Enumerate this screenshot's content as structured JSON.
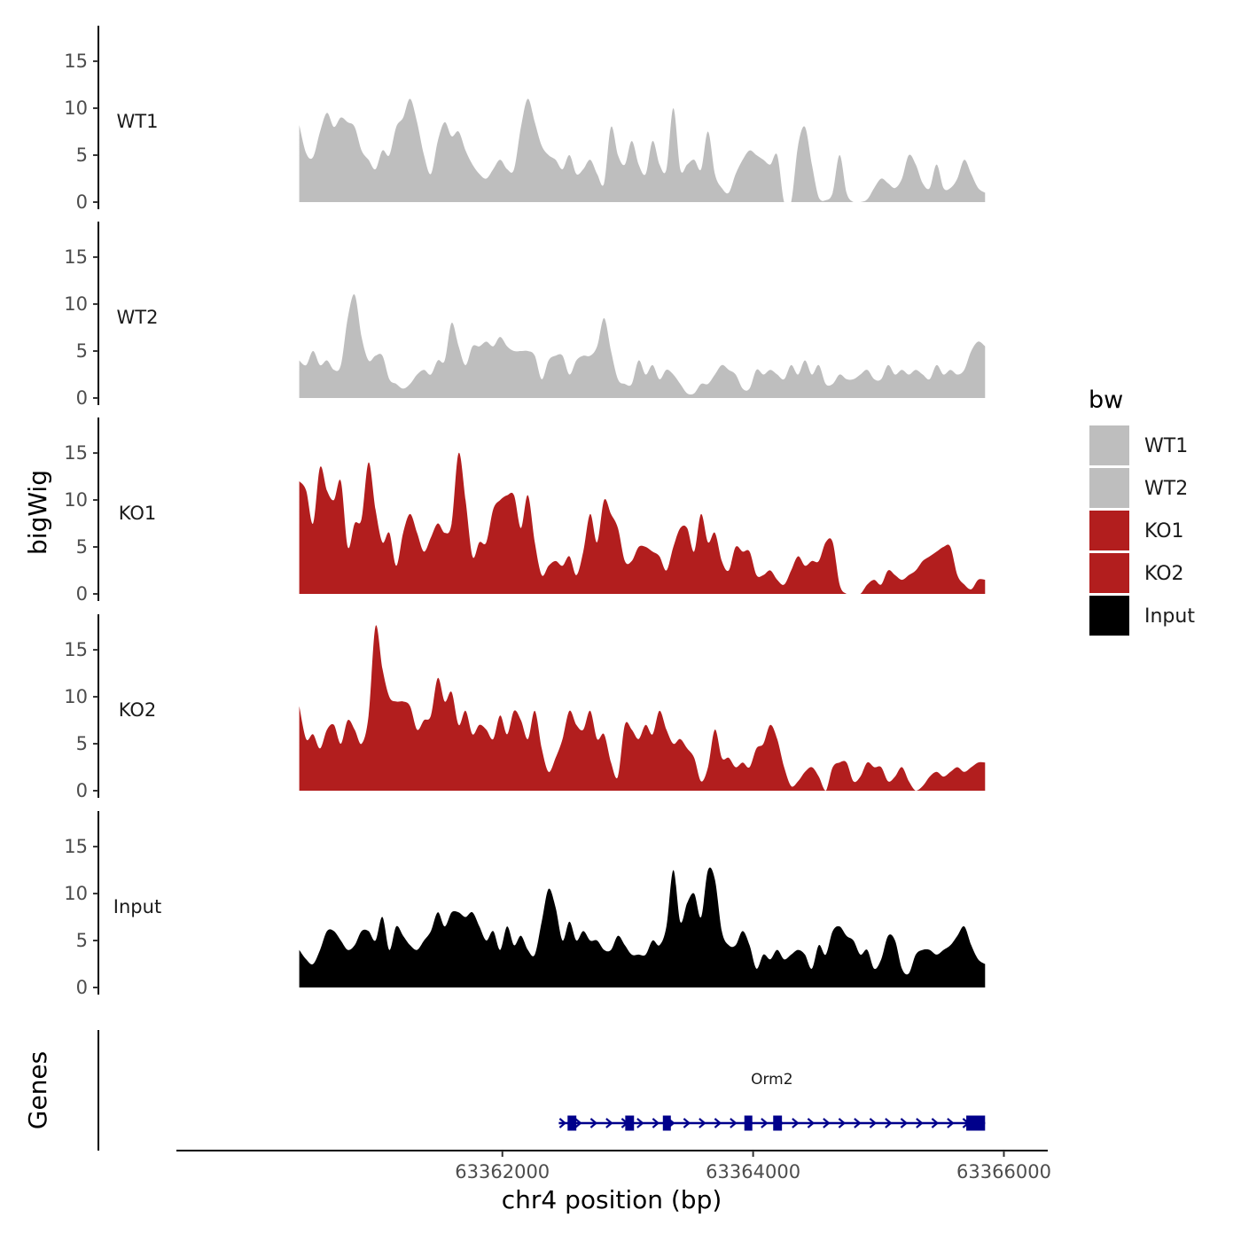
{
  "chart_data": {
    "type": "area",
    "region": {
      "chrom": "chr4",
      "start": 63360380,
      "end": 63365850
    },
    "xlabel": "chr4 position (bp)",
    "ylabel": "bigWig",
    "genes_label": "Genes",
    "xlim": [
      63359400,
      63366350
    ],
    "x_ticks": [
      63362000,
      63364000,
      63366000
    ],
    "x_tick_labels": [
      "63362000",
      "63364000",
      "63366000"
    ],
    "ylim": [
      0,
      18.5
    ],
    "y_ticks": [
      0,
      5,
      10,
      15
    ],
    "y_tick_labels": [
      "0",
      "5",
      "10",
      "15"
    ],
    "legend": {
      "title": "bw",
      "entries": [
        {
          "label": "WT1",
          "color": "#bebebe"
        },
        {
          "label": "WT2",
          "color": "#bebebe"
        },
        {
          "label": "KO1",
          "color": "#b21e1e"
        },
        {
          "label": "KO2",
          "color": "#b21e1e"
        },
        {
          "label": "Input",
          "color": "#000000"
        }
      ]
    },
    "series": [
      {
        "name": "WT1",
        "color": "#bebebe",
        "values": [
          8.2,
          5.2,
          4.8,
          7.5,
          9.5,
          8.0,
          9.0,
          8.5,
          8.0,
          5.5,
          4.5,
          3.5,
          5.5,
          5.0,
          8.0,
          9.0,
          11.0,
          8.5,
          5.0,
          3.0,
          6.5,
          8.5,
          7.0,
          7.5,
          5.5,
          4.0,
          3.0,
          2.5,
          3.5,
          4.5,
          3.5,
          3.5,
          8.0,
          11.0,
          8.5,
          6.0,
          5.0,
          4.5,
          3.5,
          5.0,
          3.0,
          3.5,
          4.5,
          3.0,
          2.0,
          8.0,
          5.0,
          4.0,
          6.5,
          4.0,
          3.0,
          6.5,
          4.0,
          3.5,
          10.0,
          3.5,
          4.0,
          4.5,
          3.5,
          7.5,
          3.0,
          1.5,
          1.0,
          3.0,
          4.5,
          5.5,
          5.0,
          4.5,
          4.0,
          5.0,
          4.5,
          4.5,
          6.0,
          8.0,
          4.0,
          0.5,
          0.2,
          1.0,
          5.0,
          1.0,
          0.5,
          0.0,
          0.3,
          1.5,
          2.5,
          2.0,
          1.5,
          2.5,
          5.0,
          4.0,
          2.0,
          1.5,
          4.0,
          1.5,
          1.5,
          2.5,
          4.5,
          3.0,
          1.5,
          1.0
        ],
        "zero_gaps": [
          [
            63364220,
            63364320
          ],
          [
            63364780,
            63364850
          ]
        ]
      },
      {
        "name": "WT2",
        "color": "#bebebe",
        "values": [
          4.0,
          3.5,
          5.0,
          3.5,
          4.0,
          3.0,
          3.5,
          8.5,
          11.0,
          6.5,
          4.0,
          4.5,
          4.5,
          2.0,
          1.5,
          1.0,
          1.5,
          2.5,
          3.0,
          2.5,
          4.0,
          4.0,
          8.0,
          5.5,
          3.5,
          5.5,
          5.5,
          6.0,
          5.5,
          6.5,
          5.5,
          5.0,
          5.0,
          5.0,
          4.5,
          2.0,
          4.0,
          4.5,
          4.5,
          2.5,
          4.0,
          4.5,
          4.5,
          5.5,
          8.5,
          5.0,
          2.0,
          1.5,
          1.5,
          4.0,
          2.5,
          3.5,
          2.0,
          3.0,
          2.5,
          1.5,
          0.5,
          0.5,
          1.5,
          1.5,
          2.5,
          3.5,
          3.0,
          2.5,
          1.0,
          1.0,
          3.0,
          2.5,
          3.0,
          2.5,
          2.0,
          3.5,
          2.5,
          4.0,
          2.5,
          3.5,
          1.5,
          1.5,
          2.5,
          2.0,
          2.0,
          2.5,
          3.0,
          2.0,
          2.0,
          3.5,
          2.5,
          3.0,
          2.5,
          3.0,
          2.5,
          2.0,
          3.5,
          2.5,
          3.0,
          2.5,
          3.0,
          5.0,
          6.0,
          5.5
        ],
        "zero_gaps": []
      },
      {
        "name": "KO1",
        "color": "#b21e1e",
        "values": [
          12.0,
          11.0,
          7.5,
          13.5,
          11.0,
          10.0,
          12.0,
          5.0,
          7.5,
          8.0,
          14.0,
          9.0,
          5.5,
          6.5,
          3.0,
          6.5,
          8.5,
          6.5,
          4.5,
          6.0,
          7.5,
          6.5,
          7.5,
          15.0,
          10.0,
          4.0,
          5.5,
          5.5,
          9.0,
          10.0,
          10.5,
          10.5,
          7.0,
          10.5,
          5.5,
          2.0,
          3.0,
          3.5,
          3.0,
          4.0,
          2.0,
          4.5,
          8.5,
          5.5,
          10.0,
          8.5,
          7.0,
          3.5,
          3.5,
          5.0,
          5.0,
          4.5,
          4.0,
          2.5,
          5.0,
          7.0,
          7.0,
          4.5,
          8.5,
          5.5,
          6.5,
          3.5,
          2.5,
          5.0,
          4.5,
          4.5,
          2.0,
          2.0,
          2.5,
          1.5,
          1.0,
          2.5,
          4.0,
          3.0,
          3.5,
          3.5,
          5.5,
          5.5,
          1.0,
          0.0,
          0.5,
          0.5,
          1.0,
          1.5,
          1.0,
          2.5,
          2.0,
          1.5,
          2.0,
          2.5,
          3.5,
          4.0,
          4.5,
          5.0,
          5.0,
          2.0,
          1.0,
          0.5,
          1.5,
          1.5
        ],
        "zero_gaps": [
          [
            63364790,
            63364880
          ]
        ]
      },
      {
        "name": "KO2",
        "color": "#b21e1e",
        "values": [
          9.0,
          5.5,
          6.0,
          4.5,
          6.5,
          7.0,
          5.0,
          7.5,
          6.5,
          5.0,
          8.0,
          17.5,
          13.0,
          10.0,
          9.5,
          9.5,
          9.0,
          6.5,
          7.5,
          8.0,
          12.0,
          9.5,
          10.5,
          7.0,
          8.5,
          6.0,
          7.0,
          6.5,
          5.5,
          8.0,
          6.0,
          8.5,
          7.5,
          5.5,
          8.5,
          4.5,
          2.0,
          3.5,
          5.5,
          8.5,
          7.0,
          6.5,
          8.5,
          5.5,
          6.0,
          3.0,
          1.5,
          7.0,
          6.5,
          5.5,
          7.0,
          6.0,
          8.5,
          6.5,
          5.0,
          5.5,
          4.5,
          3.5,
          1.0,
          2.5,
          6.5,
          3.5,
          3.5,
          2.5,
          3.0,
          2.5,
          4.5,
          5.0,
          7.0,
          5.5,
          2.5,
          0.5,
          1.0,
          2.0,
          2.5,
          1.5,
          1.5,
          2.5,
          3.0,
          3.0,
          1.0,
          1.5,
          3.0,
          2.5,
          2.5,
          1.0,
          1.5,
          2.5,
          1.0,
          0.5,
          0.5,
          1.5,
          2.0,
          1.5,
          2.0,
          2.5,
          2.0,
          2.5,
          3.0,
          3.0
        ],
        "zero_gaps": [
          [
            63364530,
            63364580
          ],
          [
            63365270,
            63365330
          ]
        ]
      },
      {
        "name": "Input",
        "color": "#000000",
        "values": [
          4.0,
          3.0,
          2.5,
          4.0,
          6.0,
          6.0,
          5.0,
          4.0,
          4.5,
          6.0,
          6.0,
          5.0,
          7.5,
          4.0,
          6.5,
          5.5,
          4.5,
          4.0,
          5.0,
          6.0,
          8.0,
          6.5,
          8.0,
          8.0,
          7.5,
          8.0,
          6.5,
          5.0,
          6.0,
          4.0,
          6.5,
          4.5,
          5.5,
          4.0,
          3.5,
          7.0,
          10.5,
          8.5,
          5.0,
          7.0,
          5.0,
          6.0,
          5.0,
          5.0,
          4.0,
          4.0,
          5.5,
          4.5,
          3.5,
          3.5,
          3.5,
          5.0,
          4.5,
          6.5,
          12.5,
          7.0,
          9.0,
          10.0,
          7.5,
          12.5,
          11.5,
          6.0,
          4.5,
          4.5,
          6.0,
          4.5,
          2.0,
          3.5,
          3.0,
          4.0,
          3.0,
          3.5,
          4.0,
          3.5,
          2.0,
          4.5,
          3.5,
          6.0,
          6.5,
          5.5,
          5.0,
          3.5,
          4.0,
          2.0,
          3.0,
          5.5,
          5.0,
          2.0,
          1.5,
          3.5,
          4.0,
          4.0,
          3.5,
          4.0,
          4.5,
          5.5,
          6.5,
          4.5,
          3.0,
          2.5
        ],
        "zero_gaps": []
      }
    ],
    "genes": [
      {
        "name": "Orm2",
        "strand": "+",
        "color": "#00008b",
        "start": 63362450,
        "end": 63365850,
        "exons": [
          [
            63362520,
            63362590
          ],
          [
            63362980,
            63363050
          ],
          [
            63363280,
            63363310
          ],
          [
            63363930,
            63363980
          ],
          [
            63364160,
            63364230
          ],
          [
            63365700,
            63365850
          ]
        ]
      }
    ]
  }
}
